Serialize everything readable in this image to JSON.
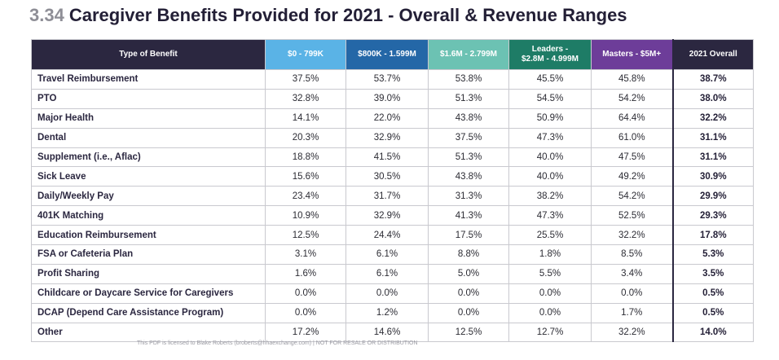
{
  "title": {
    "number": "3.34",
    "text": "Caregiver Benefits Provided for 2021 - Overall & Revenue Ranges"
  },
  "colors": {
    "header_dark": "#2b2740",
    "range_1": "#5ab3e6",
    "range_2": "#2467a7",
    "range_3": "#6cc2b3",
    "range_4": "#1e7c66",
    "range_5": "#6d3d99"
  },
  "table": {
    "headers": {
      "type": "Type of Benefit",
      "c1": "$0 - 799K",
      "c2": "$800K - 1.599M",
      "c3": "$1.6M - 2.799M",
      "c4_line1": "Leaders -",
      "c4_line2": "$2.8M - 4.999M",
      "c5": "Masters - $5M+",
      "c6": "2021 Overall"
    },
    "rows": [
      {
        "label": "Travel Reimbursement",
        "v1": "37.5%",
        "v2": "53.7%",
        "v3": "53.8%",
        "v4": "45.5%",
        "v5": "45.8%",
        "overall": "38.7%"
      },
      {
        "label": "PTO",
        "v1": "32.8%",
        "v2": "39.0%",
        "v3": "51.3%",
        "v4": "54.5%",
        "v5": "54.2%",
        "overall": "38.0%"
      },
      {
        "label": "Major Health",
        "v1": "14.1%",
        "v2": "22.0%",
        "v3": "43.8%",
        "v4": "50.9%",
        "v5": "64.4%",
        "overall": "32.2%"
      },
      {
        "label": "Dental",
        "v1": "20.3%",
        "v2": "32.9%",
        "v3": "37.5%",
        "v4": "47.3%",
        "v5": "61.0%",
        "overall": "31.1%"
      },
      {
        "label": "Supplement (i.e., Aflac)",
        "v1": "18.8%",
        "v2": "41.5%",
        "v3": "51.3%",
        "v4": "40.0%",
        "v5": "47.5%",
        "overall": "31.1%"
      },
      {
        "label": "Sick Leave",
        "v1": "15.6%",
        "v2": "30.5%",
        "v3": "43.8%",
        "v4": "40.0%",
        "v5": "49.2%",
        "overall": "30.9%"
      },
      {
        "label": "Daily/Weekly Pay",
        "v1": "23.4%",
        "v2": "31.7%",
        "v3": "31.3%",
        "v4": "38.2%",
        "v5": "54.2%",
        "overall": "29.9%"
      },
      {
        "label": "401K Matching",
        "v1": "10.9%",
        "v2": "32.9%",
        "v3": "41.3%",
        "v4": "47.3%",
        "v5": "52.5%",
        "overall": "29.3%"
      },
      {
        "label": "Education Reimbursement",
        "v1": "12.5%",
        "v2": "24.4%",
        "v3": "17.5%",
        "v4": "25.5%",
        "v5": "32.2%",
        "overall": "17.8%"
      },
      {
        "label": "FSA or Cafeteria Plan",
        "v1": "3.1%",
        "v2": "6.1%",
        "v3": "8.8%",
        "v4": "1.8%",
        "v5": "8.5%",
        "overall": "5.3%"
      },
      {
        "label": "Profit Sharing",
        "v1": "1.6%",
        "v2": "6.1%",
        "v3": "5.0%",
        "v4": "5.5%",
        "v5": "3.4%",
        "overall": "3.5%"
      },
      {
        "label": "Childcare or Daycare Service for Caregivers",
        "v1": "0.0%",
        "v2": "0.0%",
        "v3": "0.0%",
        "v4": "0.0%",
        "v5": "0.0%",
        "overall": "0.5%"
      },
      {
        "label": "DCAP (Depend Care Assistance Program)",
        "v1": "0.0%",
        "v2": "1.2%",
        "v3": "0.0%",
        "v4": "0.0%",
        "v5": "1.7%",
        "overall": "0.5%"
      },
      {
        "label": "Other",
        "v1": "17.2%",
        "v2": "14.6%",
        "v3": "12.5%",
        "v4": "12.7%",
        "v5": "32.2%",
        "overall": "14.0%"
      }
    ]
  },
  "footer": "This PDF is licensed to Blake Roberts (broberts@hhaexchange.com) | NOT FOR RESALE OR DISTRIBUTION"
}
